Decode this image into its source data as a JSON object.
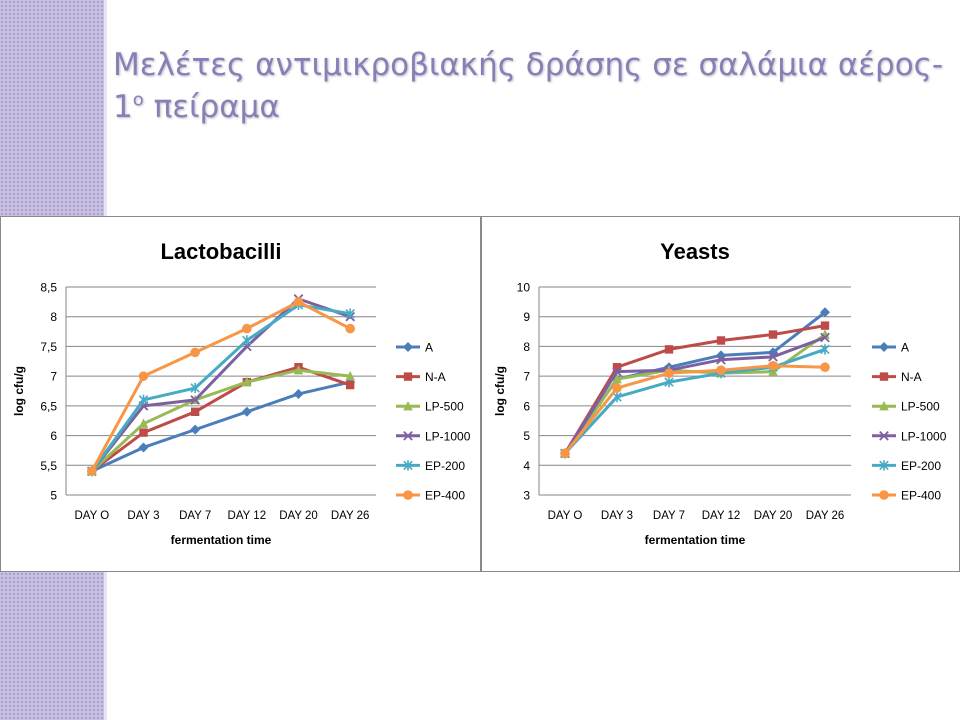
{
  "slide": {
    "title_main": "Μελέτες αντιμικροβιακής δράσης σε σαλάμια αέρος-",
    "title_second_num": "1",
    "title_sup": "ο",
    "title_second_rest": " πείραμα"
  },
  "chart_data": [
    {
      "type": "line",
      "title": "Lactobacilli",
      "xlabel": "fermentation time",
      "ylabel": "log cfu/g",
      "categories": [
        "DAY O",
        "DAY 3",
        "DAY 7",
        "DAY 12",
        "DAY 20",
        "DAY 26"
      ],
      "ylim": [
        5,
        8.5
      ],
      "yticks": [
        5,
        5.5,
        6,
        6.5,
        7,
        7.5,
        8,
        8.5
      ],
      "ytick_labels": [
        "5",
        "5,5",
        "6",
        "6,5",
        "7",
        "7,5",
        "8",
        "8,5"
      ],
      "grid": true,
      "legend_position": "right",
      "series": [
        {
          "name": "A",
          "color": "#4a7ebb",
          "marker": "diamond",
          "values": [
            5.4,
            5.8,
            6.1,
            6.4,
            6.7,
            6.9
          ]
        },
        {
          "name": "N-A",
          "color": "#be4b48",
          "marker": "square",
          "values": [
            5.4,
            6.05,
            6.4,
            6.9,
            7.15,
            6.85
          ]
        },
        {
          "name": "LP-500",
          "color": "#98b954",
          "marker": "triangle",
          "values": [
            5.4,
            6.2,
            6.6,
            6.9,
            7.1,
            7.0
          ]
        },
        {
          "name": "LP-1000",
          "color": "#7d60a0",
          "marker": "x",
          "values": [
            5.4,
            6.5,
            6.6,
            7.5,
            8.3,
            8.0
          ]
        },
        {
          "name": "EP-200",
          "color": "#46aac5",
          "marker": "star",
          "values": [
            5.4,
            6.6,
            6.8,
            7.6,
            8.2,
            8.05
          ]
        },
        {
          "name": "EP-400",
          "color": "#f79646",
          "marker": "circle",
          "values": [
            5.4,
            7.0,
            7.4,
            7.8,
            8.25,
            7.8
          ]
        }
      ]
    },
    {
      "type": "line",
      "title": "Yeasts",
      "xlabel": "fermentation time",
      "ylabel": "log cfu/g",
      "categories": [
        "DAY O",
        "DAY 3",
        "DAY 7",
        "DAY 12",
        "DAY 20",
        "DAY 26"
      ],
      "ylim": [
        3,
        10
      ],
      "yticks": [
        3,
        4,
        5,
        6,
        7,
        8,
        9,
        10
      ],
      "ytick_labels": [
        "3",
        "4",
        "5",
        "6",
        "7",
        "8",
        "9",
        "10"
      ],
      "grid": true,
      "legend_position": "right",
      "series": [
        {
          "name": "A",
          "color": "#4a7ebb",
          "marker": "diamond",
          "values": [
            4.4,
            6.9,
            7.3,
            7.7,
            7.8,
            9.15
          ]
        },
        {
          "name": "N-A",
          "color": "#be4b48",
          "marker": "square",
          "values": [
            4.4,
            7.3,
            7.9,
            8.2,
            8.4,
            8.7
          ]
        },
        {
          "name": "LP-500",
          "color": "#98b954",
          "marker": "triangle",
          "values": [
            4.4,
            6.9,
            7.2,
            7.1,
            7.15,
            8.4
          ]
        },
        {
          "name": "LP-1000",
          "color": "#7d60a0",
          "marker": "x",
          "values": [
            4.4,
            7.15,
            7.2,
            7.55,
            7.65,
            8.3
          ]
        },
        {
          "name": "EP-200",
          "color": "#46aac5",
          "marker": "star",
          "values": [
            4.4,
            6.3,
            6.8,
            7.1,
            7.3,
            7.9
          ]
        },
        {
          "name": "EP-400",
          "color": "#f79646",
          "marker": "circle",
          "values": [
            4.4,
            6.6,
            7.1,
            7.2,
            7.35,
            7.3
          ]
        }
      ]
    }
  ]
}
